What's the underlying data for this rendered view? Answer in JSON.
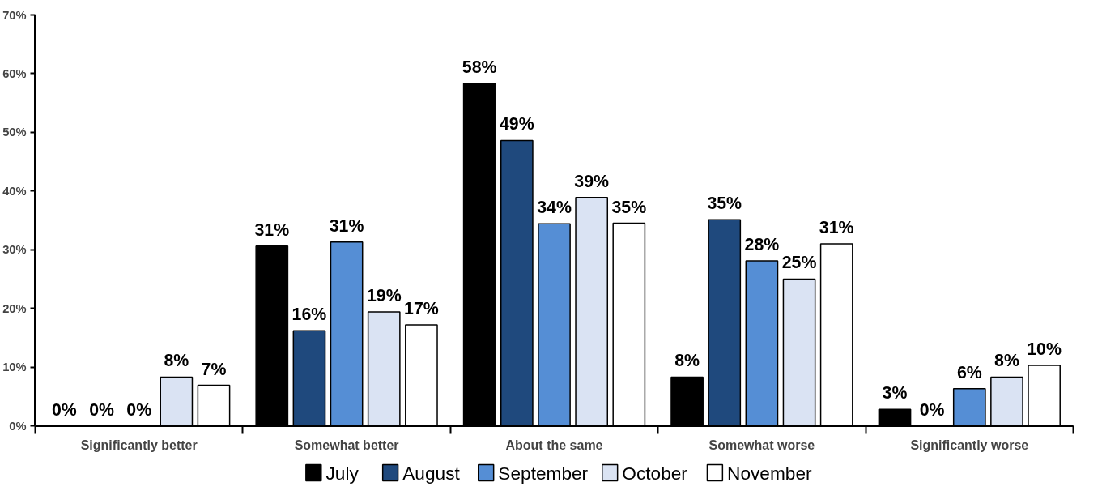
{
  "chart_data": {
    "type": "bar",
    "categories": [
      "Significantly better",
      "Somewhat better",
      "About the same",
      "Somewhat worse",
      "Significantly worse"
    ],
    "series": [
      {
        "name": "July",
        "color": "#000000",
        "values": [
          0,
          30.6,
          58.3,
          8.3,
          2.8
        ],
        "value_labels": [
          "0%",
          "31%",
          "58%",
          "8%",
          "3%"
        ]
      },
      {
        "name": "August",
        "color": "#1f497d",
        "values": [
          0,
          16.2,
          48.6,
          35.1,
          0
        ],
        "value_labels": [
          "0%",
          "16%",
          "49%",
          "35%",
          "0%"
        ]
      },
      {
        "name": "September",
        "color": "#558ed5",
        "values": [
          0,
          31.3,
          34.4,
          28.1,
          6.3
        ],
        "value_labels": [
          "0%",
          "31%",
          "34%",
          "28%",
          "6%"
        ]
      },
      {
        "name": "October",
        "color": "#dae3f3",
        "values": [
          8.3,
          19.4,
          38.9,
          25.0,
          8.3
        ],
        "value_labels": [
          "8%",
          "19%",
          "39%",
          "25%",
          "8%"
        ]
      },
      {
        "name": "November",
        "color": "#ffffff",
        "values": [
          6.9,
          17.2,
          34.5,
          31.0,
          10.3
        ],
        "value_labels": [
          "7%",
          "17%",
          "35%",
          "31%",
          "10%"
        ]
      }
    ],
    "ylim": [
      0,
      70
    ],
    "yticks": [
      {
        "value": 0,
        "label": "0%"
      },
      {
        "value": 10,
        "label": "10%"
      },
      {
        "value": 20,
        "label": "20%"
      },
      {
        "value": 30,
        "label": "30%"
      },
      {
        "value": 40,
        "label": "40%"
      },
      {
        "value": 50,
        "label": "50%"
      },
      {
        "value": 60,
        "label": "60%"
      },
      {
        "value": 70,
        "label": "70%"
      }
    ],
    "grid": false,
    "legend": "bottom"
  }
}
